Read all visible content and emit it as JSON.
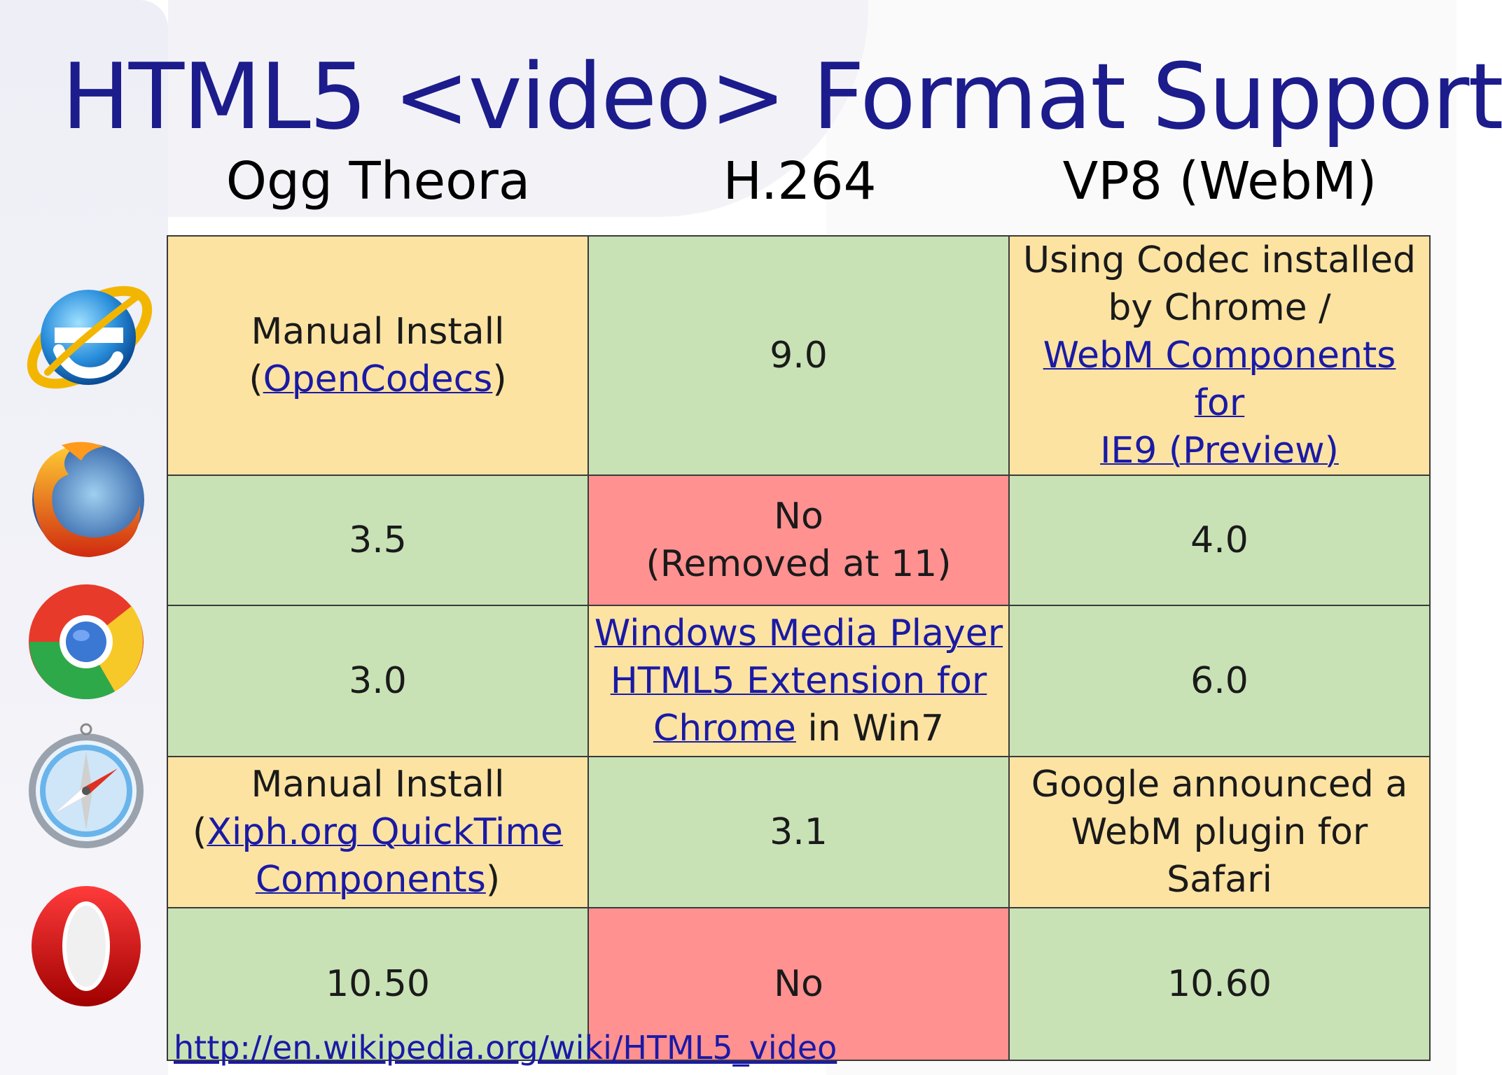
{
  "slide": {
    "title": "HTML5 <video> Format Support",
    "source_link": "http://en.wikipedia.org/wiki/HTML5_video"
  },
  "columns": [
    "Ogg Theora",
    "H.264",
    "VP8 (WebM)"
  ],
  "browsers": [
    {
      "icon": "internet-explorer-icon"
    },
    {
      "icon": "firefox-icon"
    },
    {
      "icon": "chrome-icon"
    },
    {
      "icon": "safari-icon"
    },
    {
      "icon": "opera-icon"
    }
  ],
  "cells": {
    "ie": {
      "ogg": {
        "line1": "Manual Install",
        "open": "(",
        "link": "OpenCodecs",
        "close": ")"
      },
      "h264": "9.0",
      "vp8": {
        "line1": "Using Codec installed",
        "line2": "by Chrome /",
        "link1": "WebM Components for",
        "link2": "IE9 (Preview)"
      }
    },
    "firefox": {
      "ogg": "3.5",
      "h264": {
        "line1": "No",
        "line2": "(Removed at 11)"
      },
      "vp8": "4.0"
    },
    "chrome": {
      "ogg": "3.0",
      "h264": {
        "link1": "Windows Media Player",
        "link2": "HTML5 Extension for",
        "link3": "Chrome",
        "suffix": " in Win7"
      },
      "vp8": "6.0"
    },
    "safari": {
      "ogg": {
        "line1": "Manual Install",
        "open": "(",
        "link1": "Xiph.org QuickTime",
        "link2": "Components",
        "close": ")"
      },
      "h264": "3.1",
      "vp8": {
        "line1": "Google announced a",
        "line2": "WebM plugin for Safari"
      }
    },
    "opera": {
      "ogg": "10.50",
      "h264": "No",
      "vp8": "10.60"
    }
  },
  "colors": {
    "supported": "#c8e2b6",
    "partial": "#fde3a2",
    "unsupported": "#ff9191",
    "title": "#1c1c8c",
    "link": "#1a1aa6"
  }
}
